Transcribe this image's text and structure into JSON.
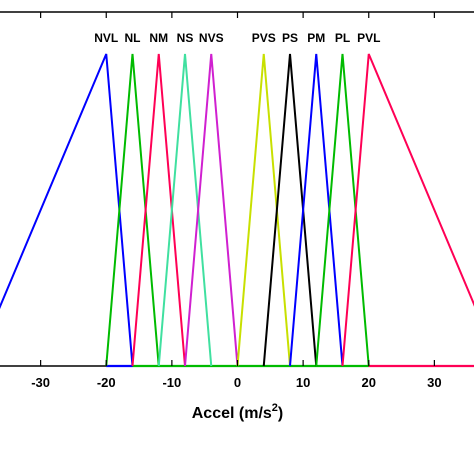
{
  "chart_data": {
    "type": "line",
    "title": "",
    "xlabel": "Accel (m/s",
    "xlabel_superscript": "2",
    "xlabel_suffix": ")",
    "ylabel": "",
    "xlim": [
      -40,
      40
    ],
    "ylim": [
      0,
      1
    ],
    "grid": false,
    "x_ticks": [
      -30,
      -20,
      -10,
      0,
      10,
      20,
      30
    ],
    "x_tick_labels": [
      "-30",
      "-20",
      "-10",
      "0",
      "10",
      "20",
      "30"
    ],
    "series": [
      {
        "name": "NVL",
        "color": "#0000ff",
        "x": [
          -40,
          -20,
          -16
        ],
        "y": [
          0,
          1,
          0
        ]
      },
      {
        "name": "NL",
        "color": "#00bb00",
        "x": [
          -20,
          -16,
          -12
        ],
        "y": [
          0,
          1,
          0
        ]
      },
      {
        "name": "NM",
        "color": "#ff0055",
        "x": [
          -16,
          -12,
          -8
        ],
        "y": [
          0,
          1,
          0
        ]
      },
      {
        "name": "NS",
        "color": "#40e0a0",
        "x": [
          -12,
          -8,
          -4
        ],
        "y": [
          0,
          1,
          0
        ]
      },
      {
        "name": "NVS",
        "color": "#d020d0",
        "x": [
          -8,
          -4,
          0
        ],
        "y": [
          0,
          1,
          0
        ]
      },
      {
        "name": "PVS",
        "color": "#c8e000",
        "x": [
          0,
          4,
          8
        ],
        "y": [
          0,
          1,
          0
        ]
      },
      {
        "name": "PS",
        "color": "#000000",
        "x": [
          4,
          8,
          12
        ],
        "y": [
          0,
          1,
          0
        ]
      },
      {
        "name": "PM",
        "color": "#0000ff",
        "x": [
          8,
          12,
          16
        ],
        "y": [
          0,
          1,
          0
        ]
      },
      {
        "name": "PL",
        "color": "#00bb00",
        "x": [
          12,
          16,
          20
        ],
        "y": [
          0,
          1,
          0
        ]
      },
      {
        "name": "PVL",
        "color": "#ff0055",
        "x": [
          16,
          20,
          40
        ],
        "y": [
          0,
          1,
          0
        ]
      }
    ],
    "baseline_series": [
      {
        "color": "#0000ff",
        "x": [
          -20,
          -16
        ],
        "y": [
          0,
          0
        ]
      },
      {
        "color": "#00bb00",
        "x": [
          -16,
          20
        ],
        "y": [
          0,
          0
        ]
      },
      {
        "color": "#ff0055",
        "x": [
          20,
          40
        ],
        "y": [
          0,
          0
        ]
      }
    ]
  }
}
